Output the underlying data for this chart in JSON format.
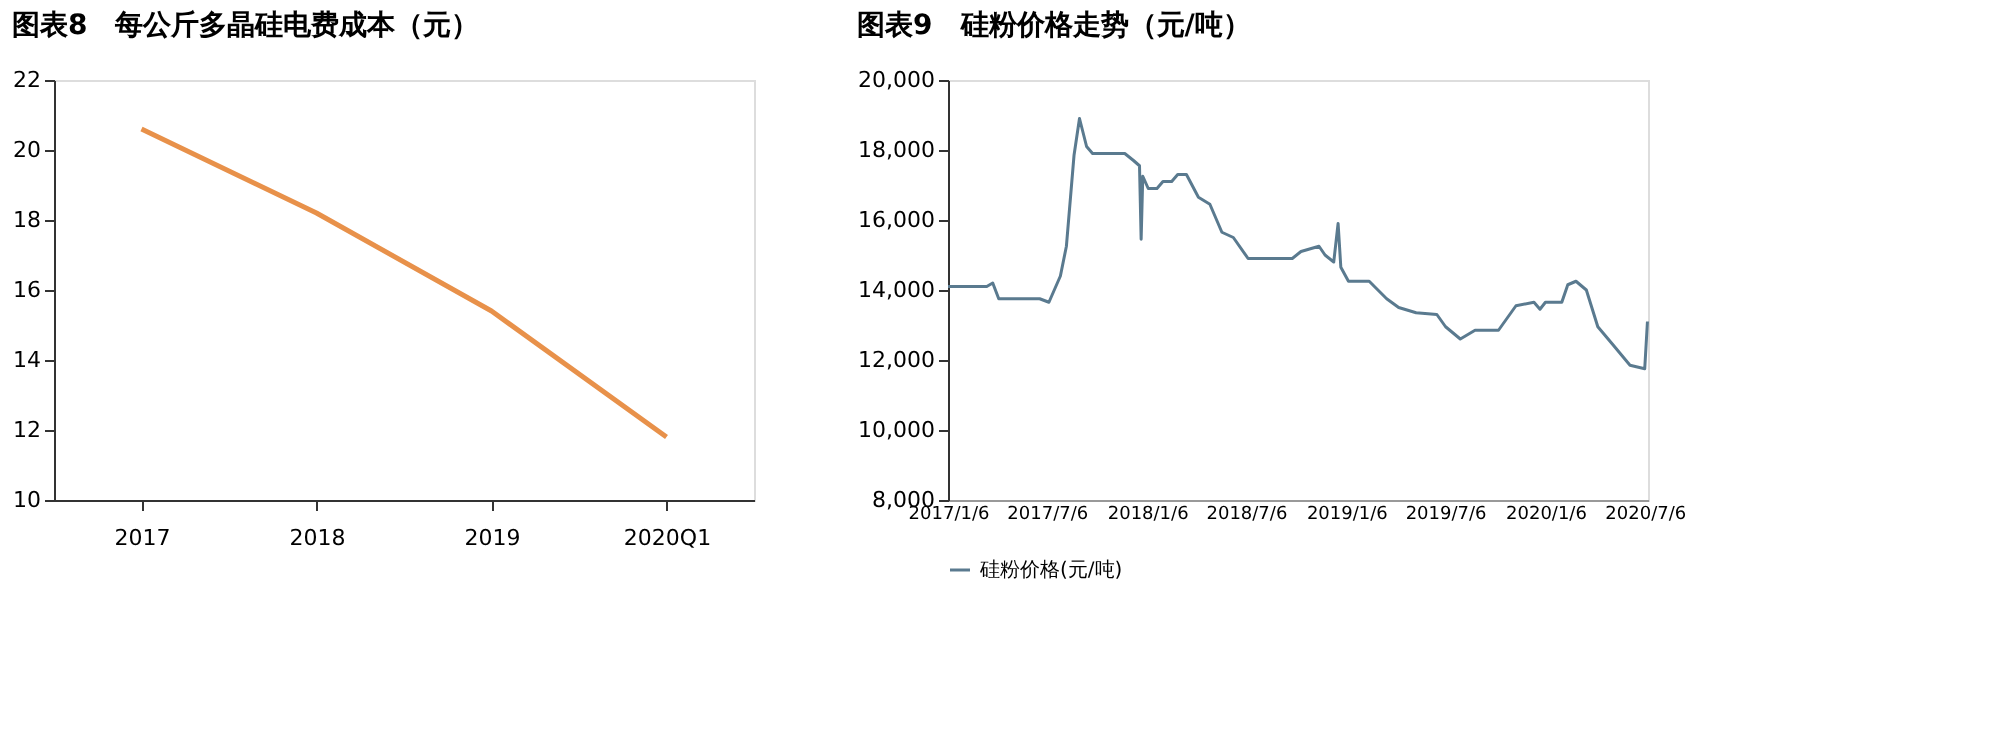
{
  "chart_data": [
    {
      "type": "line",
      "title": "图表8　每公斤多晶硅电费成本（元）",
      "categories": [
        "2017",
        "2018",
        "2019",
        "2020Q1"
      ],
      "series": [
        {
          "color": "#e8914a",
          "values": [
            20.6,
            18.2,
            15.4,
            11.8
          ]
        }
      ],
      "ylim": [
        10,
        22
      ],
      "yticks": [
        10,
        12,
        14,
        16,
        18,
        20,
        22
      ],
      "grid": false,
      "legend": false,
      "marker": "none"
    },
    {
      "type": "line",
      "title": "图表9　硅粉价格走势（元/吨）",
      "xlim": [
        "2017-01-06",
        "2020-07-12"
      ],
      "xticks": [
        {
          "value": "2017-01-06",
          "label": "2017/1/6"
        },
        {
          "value": "2017-07-06",
          "label": "2017/7/6"
        },
        {
          "value": "2018-01-06",
          "label": "2018/1/6"
        },
        {
          "value": "2018-07-06",
          "label": "2018/7/6"
        },
        {
          "value": "2019-01-06",
          "label": "2019/1/6"
        },
        {
          "value": "2019-07-06",
          "label": "2019/7/6"
        },
        {
          "value": "2020-01-06",
          "label": "2020/1/6"
        },
        {
          "value": "2020-07-06",
          "label": "2020/7/6"
        }
      ],
      "ylim": [
        8000,
        20000
      ],
      "yticks": [
        {
          "value": 8000,
          "label": "8,000"
        },
        {
          "value": 10000,
          "label": "10,000"
        },
        {
          "value": 12000,
          "label": "12,000"
        },
        {
          "value": 14000,
          "label": "14,000"
        },
        {
          "value": 16000,
          "label": "16,000"
        },
        {
          "value": 18000,
          "label": "18,000"
        },
        {
          "value": 20000,
          "label": "20,000"
        }
      ],
      "grid": false,
      "legend": "bottom",
      "marker": "none",
      "x": [
        "2017-01-06",
        "2017-03-18",
        "2017-03-29",
        "2017-04-09",
        "2017-06-23",
        "2017-07-10",
        "2017-07-31",
        "2017-08-11",
        "2017-08-25",
        "2017-09-04",
        "2017-09-17",
        "2017-09-28",
        "2017-11-26",
        "2017-12-12",
        "2017-12-23",
        "2017-12-26",
        "2017-12-29",
        "2018-01-08",
        "2018-01-24",
        "2018-02-04",
        "2018-02-20",
        "2018-03-03",
        "2018-03-19",
        "2018-04-10",
        "2018-05-01",
        "2018-05-23",
        "2018-06-13",
        "2018-07-10",
        "2018-09-29",
        "2018-10-15",
        "2018-11-17",
        "2018-11-28",
        "2018-12-14",
        "2018-12-22",
        "2018-12-27",
        "2019-01-10",
        "2019-02-17",
        "2019-03-21",
        "2019-04-12",
        "2019-05-14",
        "2019-06-21",
        "2019-07-07",
        "2019-08-03",
        "2019-08-30",
        "2019-10-12",
        "2019-11-13",
        "2019-12-16",
        "2019-12-27",
        "2020-01-06",
        "2020-02-05",
        "2020-02-16",
        "2020-03-02",
        "2020-03-21",
        "2020-04-11",
        "2020-05-08",
        "2020-06-09",
        "2020-07-06",
        "2020-07-11"
      ],
      "series": [
        {
          "name": "硅粉价格(元/吨)",
          "color": "#5a7a8f",
          "values": [
            14100,
            14100,
            14200,
            13750,
            13750,
            13650,
            14400,
            15250,
            17850,
            18900,
            18100,
            17900,
            17900,
            17700,
            17550,
            15450,
            17250,
            16900,
            16900,
            17100,
            17100,
            17300,
            17300,
            16650,
            16450,
            15650,
            15500,
            14900,
            14900,
            15100,
            15250,
            15000,
            14800,
            15900,
            14650,
            14250,
            14250,
            13750,
            13500,
            13350,
            13300,
            12950,
            12600,
            12850,
            12850,
            13550,
            13650,
            13450,
            13650,
            13650,
            14150,
            14250,
            14000,
            12950,
            12450,
            11850,
            11750,
            13100
          ]
        }
      ]
    }
  ]
}
